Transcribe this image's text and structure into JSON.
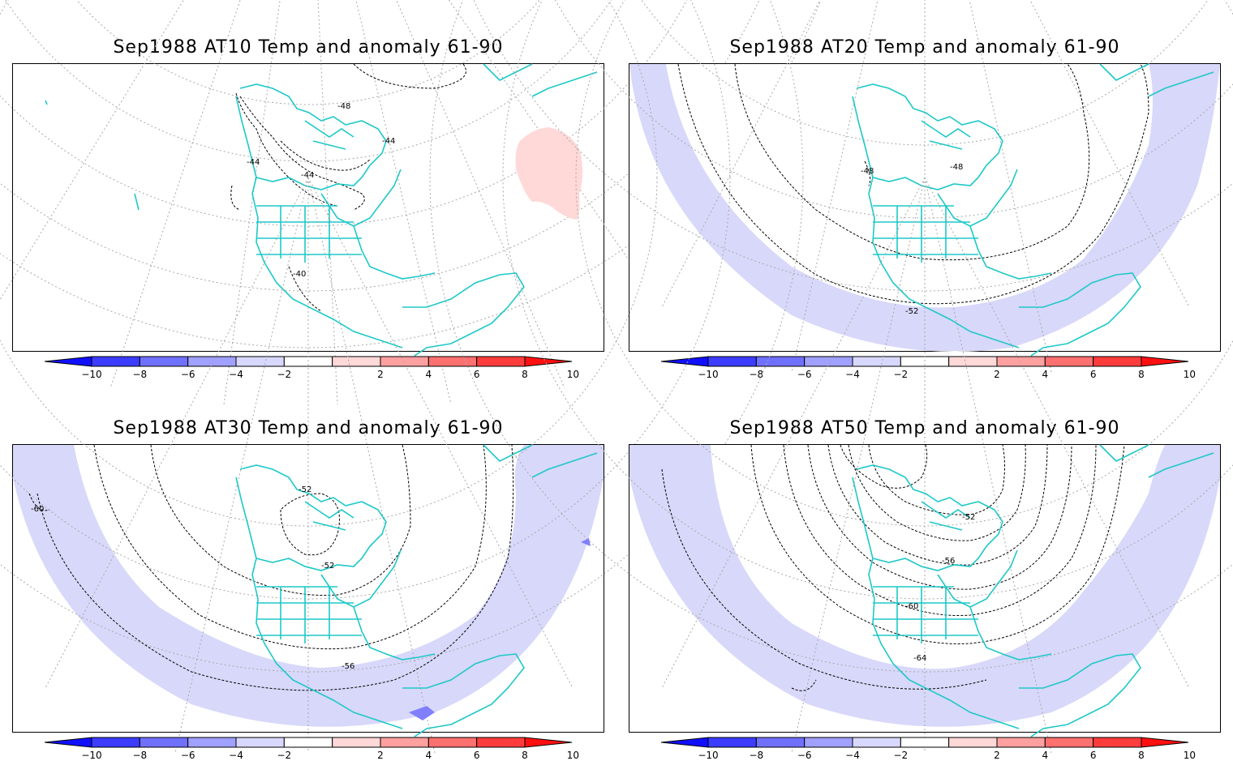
{
  "panels": [
    {
      "id": "at10",
      "title": "Sep1988 AT10 Temp and anomaly 61-90",
      "contour_labels": [
        "-48",
        "-44",
        "-44",
        "-44",
        "-40"
      ],
      "anomaly": "mostly near zero; positive patch over North Atlantic"
    },
    {
      "id": "at20",
      "title": "Sep1988 AT20 Temp and anomaly 61-90",
      "contour_labels": [
        "-48",
        "-48",
        "-52"
      ],
      "anomaly": "negative band along southern margin"
    },
    {
      "id": "at30",
      "title": "Sep1988 AT30 Temp and anomaly 61-90",
      "contour_labels": [
        "-52",
        "-52",
        "-56",
        "-60"
      ],
      "anomaly": "negative band along southern margin"
    },
    {
      "id": "at50",
      "title": "Sep1988 AT50 Temp and anomaly 61-90",
      "contour_labels": [
        "-52",
        "-56",
        "-60",
        "-64"
      ],
      "anomaly": "negative band along southern margin"
    }
  ],
  "colorbar": {
    "ticks": [
      "−10",
      "−8",
      "−6",
      "−4",
      "−2",
      "2",
      "4",
      "6",
      "8",
      "10"
    ],
    "colors": [
      "#1010ff",
      "#3c3cff",
      "#7070ff",
      "#a0a0ff",
      "#d8d8ff",
      "#ffffff",
      "#ffd8d8",
      "#ffa0a0",
      "#ff7070",
      "#ff3c3c",
      "#ff1010"
    ]
  },
  "colors": {
    "coastline": "#1ec8c8",
    "negative_anomaly": "#d8d8fa",
    "positive_anomaly": "#ffd8d8",
    "grid": "#a0a0a0",
    "contour": "#000000"
  }
}
